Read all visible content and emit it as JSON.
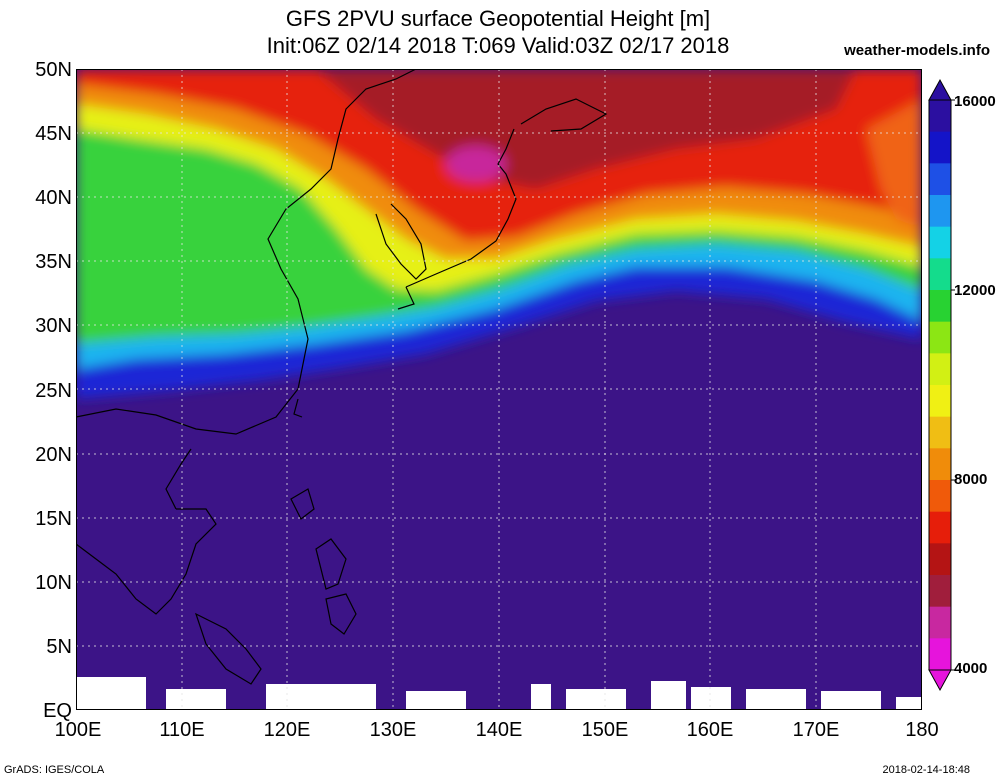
{
  "header": {
    "title_line1": "GFS 2PVU surface Geopotential Height [m]",
    "title_line2": "Init:06Z 02/14 2018 T:069 Valid:03Z 02/17 2018",
    "credit": "weather-models.info"
  },
  "axes": {
    "lat_labels": [
      "50N",
      "45N",
      "40N",
      "35N",
      "30N",
      "25N",
      "20N",
      "15N",
      "10N",
      "5N",
      "EQ"
    ],
    "lon_labels": [
      "100E",
      "110E",
      "120E",
      "130E",
      "140E",
      "150E",
      "160E",
      "170E",
      "180"
    ]
  },
  "colorbar": {
    "labels": [
      "16000",
      "12000",
      "8000",
      "4000"
    ],
    "colors": [
      "#2b0fa0",
      "#1414c8",
      "#1e50e6",
      "#1e96f0",
      "#14d2e6",
      "#14dc8c",
      "#28d232",
      "#8ce614",
      "#d2f014",
      "#f0f014",
      "#f0be14",
      "#f08c0a",
      "#f05a0a",
      "#e61e0a",
      "#b41414",
      "#a01e3c",
      "#c828a0",
      "#e614dc"
    ]
  },
  "footer": {
    "left": "GrADS: IGES/COLA",
    "right": "2018-02-14-18:48"
  }
}
